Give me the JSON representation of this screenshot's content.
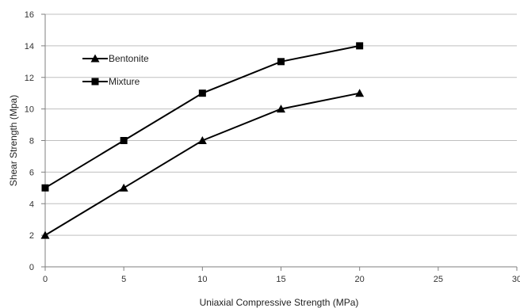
{
  "chart_data": {
    "type": "line",
    "xlabel": "Uniaxial Compressive Strength (MPa)",
    "ylabel": "Shear Strength (Mpa)",
    "xlim": [
      0,
      30
    ],
    "ylim": [
      0,
      16
    ],
    "xticks": [
      0,
      5,
      10,
      15,
      20,
      25,
      30
    ],
    "yticks": [
      0,
      2,
      4,
      6,
      8,
      10,
      12,
      14,
      16
    ],
    "grid": "horizontal",
    "legend_position": "top-left",
    "series": [
      {
        "name": "Bentonite",
        "marker": "triangle",
        "color": "#000000",
        "x": [
          0,
          5,
          10,
          15,
          20
        ],
        "y": [
          2,
          5,
          8,
          10,
          11
        ]
      },
      {
        "name": "Mixture",
        "marker": "square",
        "color": "#000000",
        "x": [
          0,
          5,
          10,
          15,
          20
        ],
        "y": [
          5,
          8,
          11,
          13,
          14
        ]
      }
    ]
  }
}
